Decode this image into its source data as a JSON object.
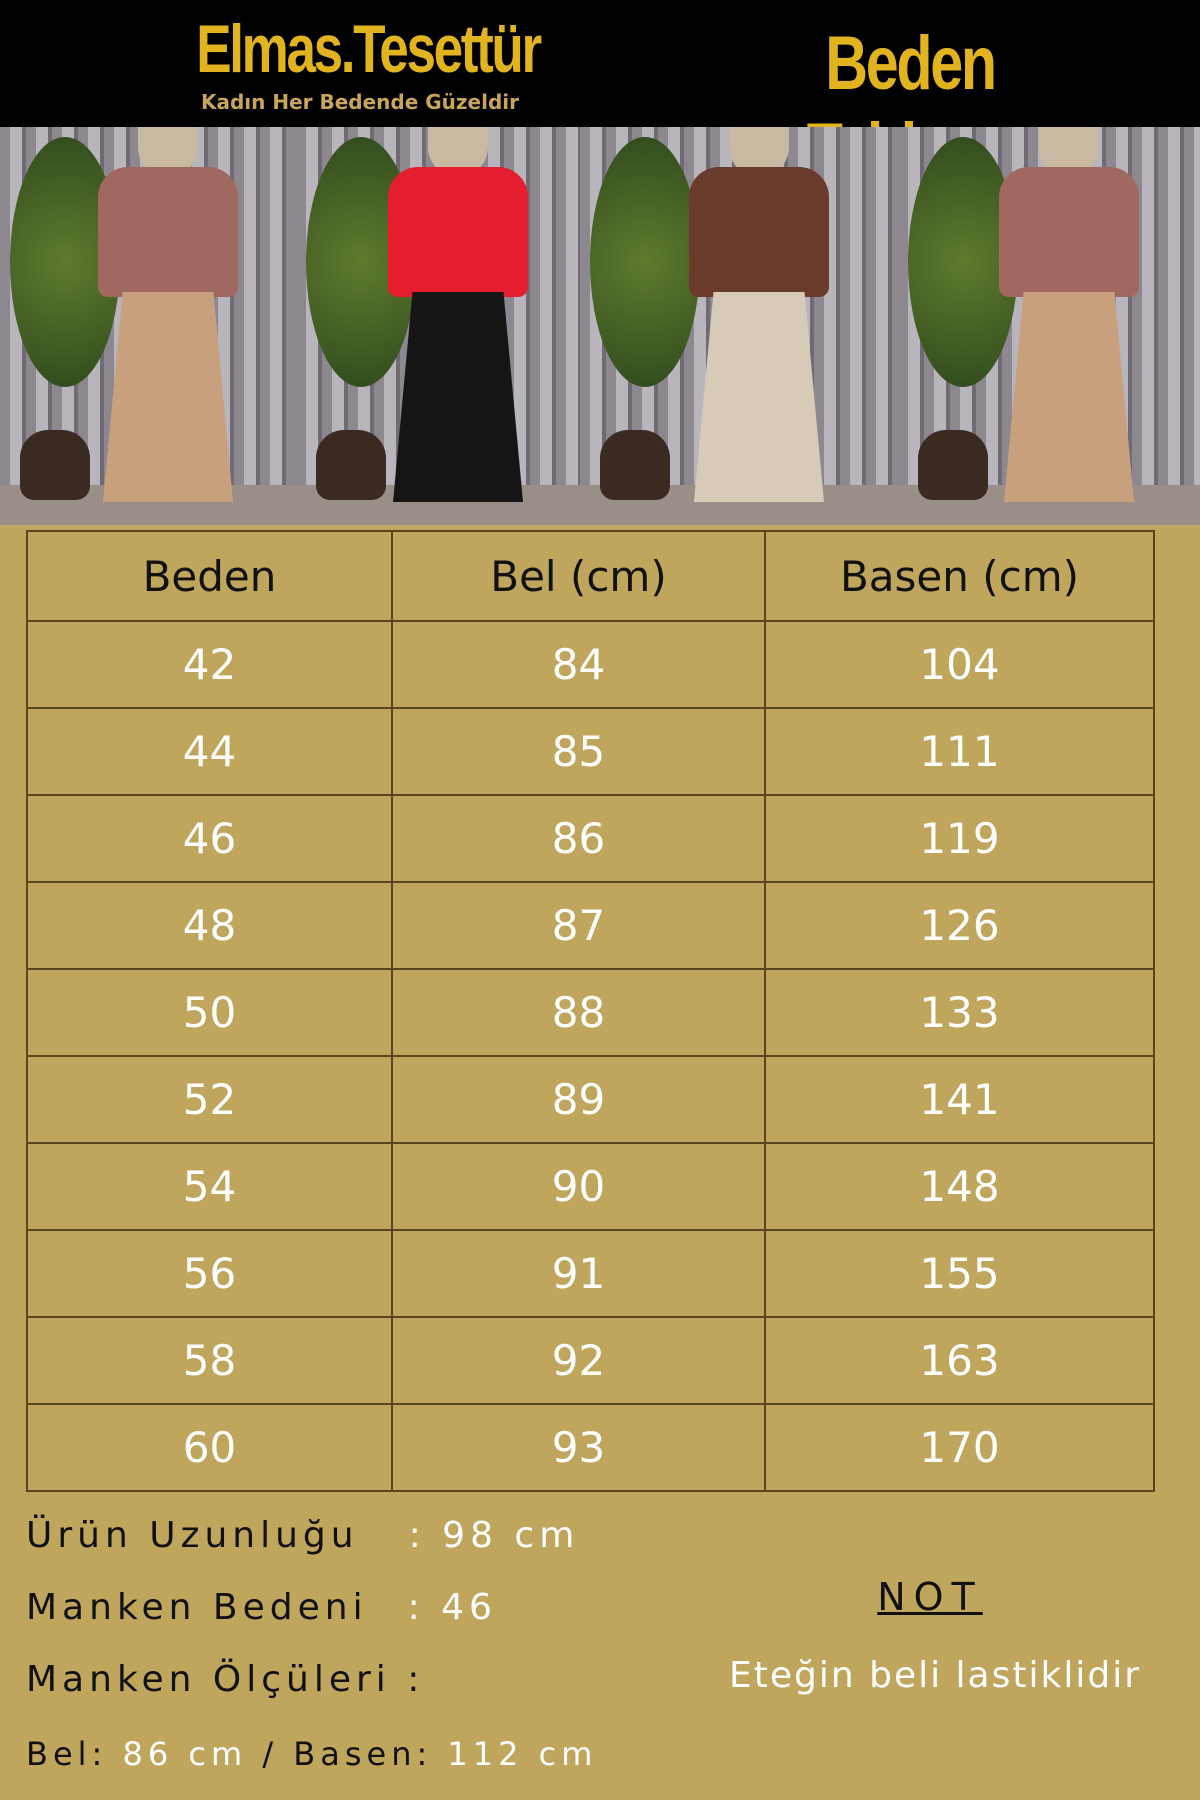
{
  "header": {
    "brand": "Elmas.Tesettür",
    "slogan": "Kadın Her Bedende Güzeldir",
    "title": "Beden Tablosu"
  },
  "colors": {
    "background": "#c0a65d",
    "header_bg": "#000000",
    "gold": "#e1b41f",
    "grid": "#5a4520"
  },
  "photos": [
    {
      "top_color": "#a0685e",
      "skirt_color": "#c9a07e"
    },
    {
      "top_color": "#e41e2e",
      "skirt_color": "#151515"
    },
    {
      "top_color": "#6a3a2a",
      "skirt_color": "#d7cbb8"
    },
    {
      "top_color": "#a0685e",
      "skirt_color": "#c9a07e"
    }
  ],
  "table": {
    "headers": [
      "Beden",
      "Bel (cm)",
      "Basen (cm)"
    ],
    "rows": [
      [
        "42",
        "84",
        "104"
      ],
      [
        "44",
        "85",
        "111"
      ],
      [
        "46",
        "86",
        "119"
      ],
      [
        "48",
        "87",
        "126"
      ],
      [
        "50",
        "88",
        "133"
      ],
      [
        "52",
        "89",
        "141"
      ],
      [
        "54",
        "90",
        "148"
      ],
      [
        "56",
        "91",
        "155"
      ],
      [
        "58",
        "92",
        "163"
      ],
      [
        "60",
        "93",
        "170"
      ]
    ]
  },
  "info": {
    "length_label": "Ürün Uzunluğu",
    "length_value": ": 98 cm",
    "model_size_label": "Manken Bedeni",
    "model_size_value": ": 46",
    "model_measures_label": "Manken Ölçüleri :",
    "bel_label": "Bel:",
    "bel_value": "86 cm",
    "sep": "/",
    "basen_label": "Basen:",
    "basen_value": "112 cm"
  },
  "note": {
    "title": "NOT",
    "text": "Eteğin beli lastiklidir"
  }
}
